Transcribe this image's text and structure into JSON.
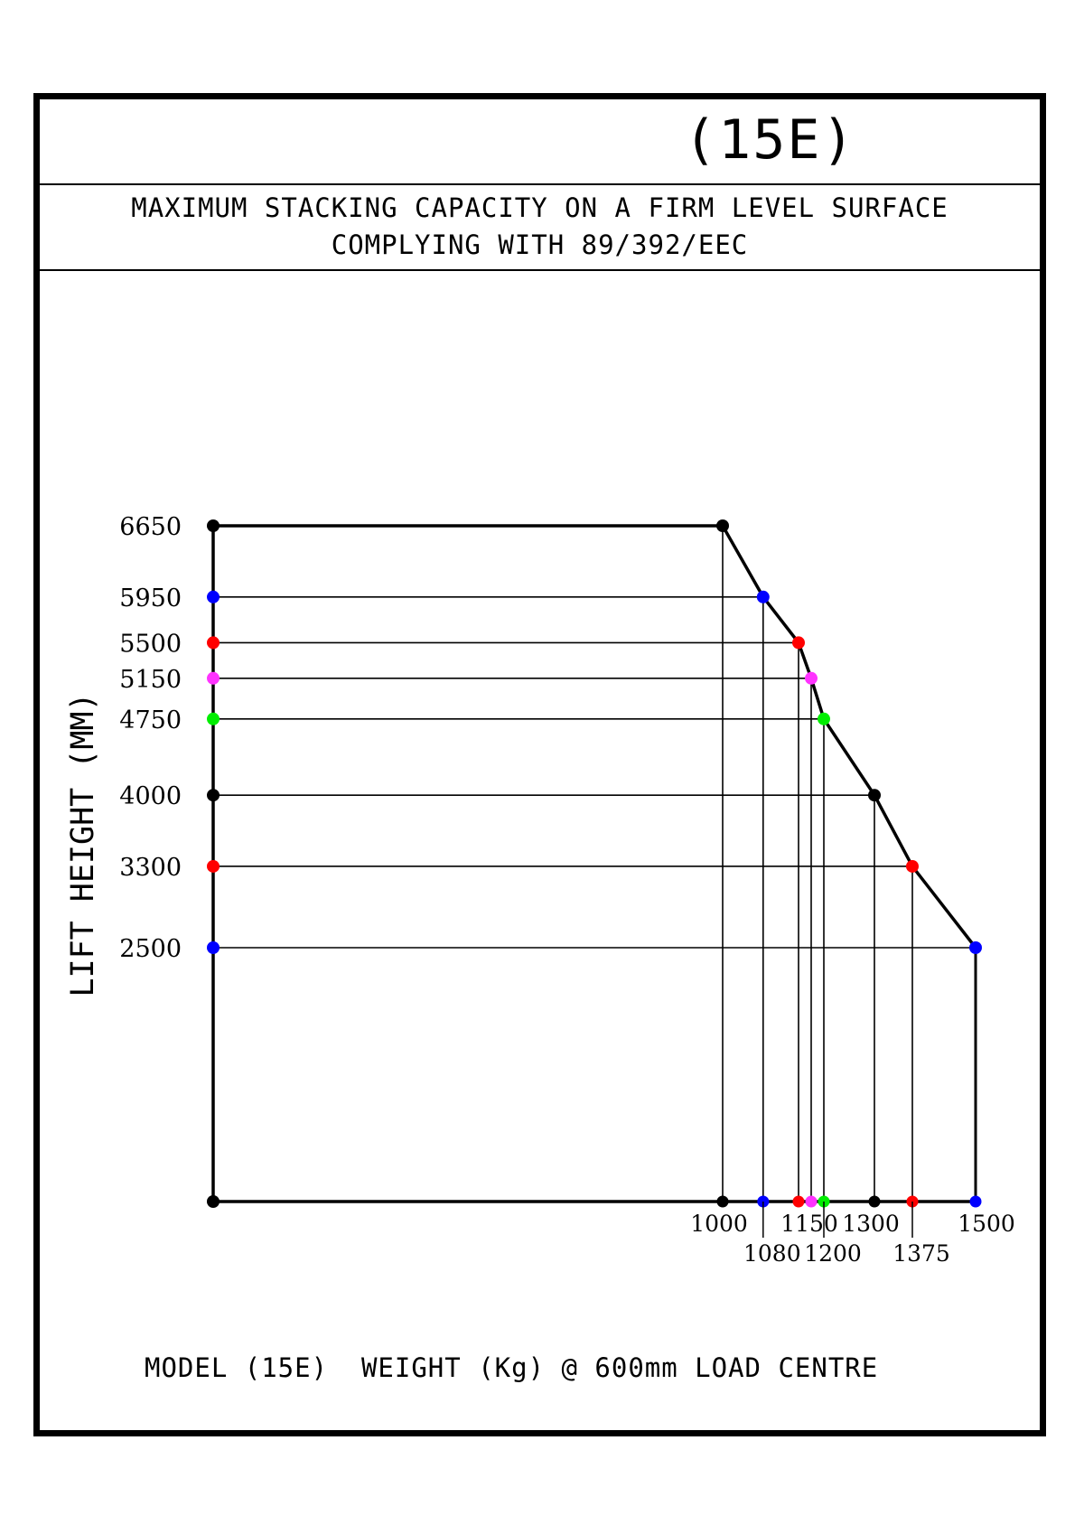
{
  "header": {
    "model_title": "(15E)",
    "subtitle_line1": "MAXIMUM STACKING CAPACITY ON A FIRM LEVEL SURFACE",
    "subtitle_line2": "COMPLYING WITH 89/392/EEC"
  },
  "footer": {
    "caption": "MODEL (15E)  WEIGHT (Kg) @ 600mm LOAD CENTRE"
  },
  "chart_data": {
    "type": "line",
    "title": "",
    "ylabel": "LIFT HEIGHT (MM)",
    "xlabel": "",
    "ylim": [
      0,
      6650
    ],
    "points": [
      {
        "x": 1000,
        "y": 6650,
        "x_label": "1000",
        "y_label": "6650",
        "color": "#000000"
      },
      {
        "x": 1080,
        "y": 5950,
        "x_label": "1080",
        "y_label": "5950",
        "color": "#0000ff"
      },
      {
        "x": 1150,
        "y": 5500,
        "x_label": "1150",
        "y_label": "5500",
        "color": "#ff0000"
      },
      {
        "x": 1175,
        "y": 5150,
        "x_label": "",
        "y_label": "5150",
        "color": "#ff33ff"
      },
      {
        "x": 1200,
        "y": 4750,
        "x_label": "1200",
        "y_label": "4750",
        "color": "#00ee00"
      },
      {
        "x": 1300,
        "y": 4000,
        "x_label": "1300",
        "y_label": "4000",
        "color": "#000000"
      },
      {
        "x": 1375,
        "y": 3300,
        "x_label": "1375",
        "y_label": "3300",
        "color": "#ff0000"
      },
      {
        "x": 1500,
        "y": 2500,
        "x_label": "1500",
        "y_label": "2500",
        "color": "#0000ff"
      }
    ]
  }
}
